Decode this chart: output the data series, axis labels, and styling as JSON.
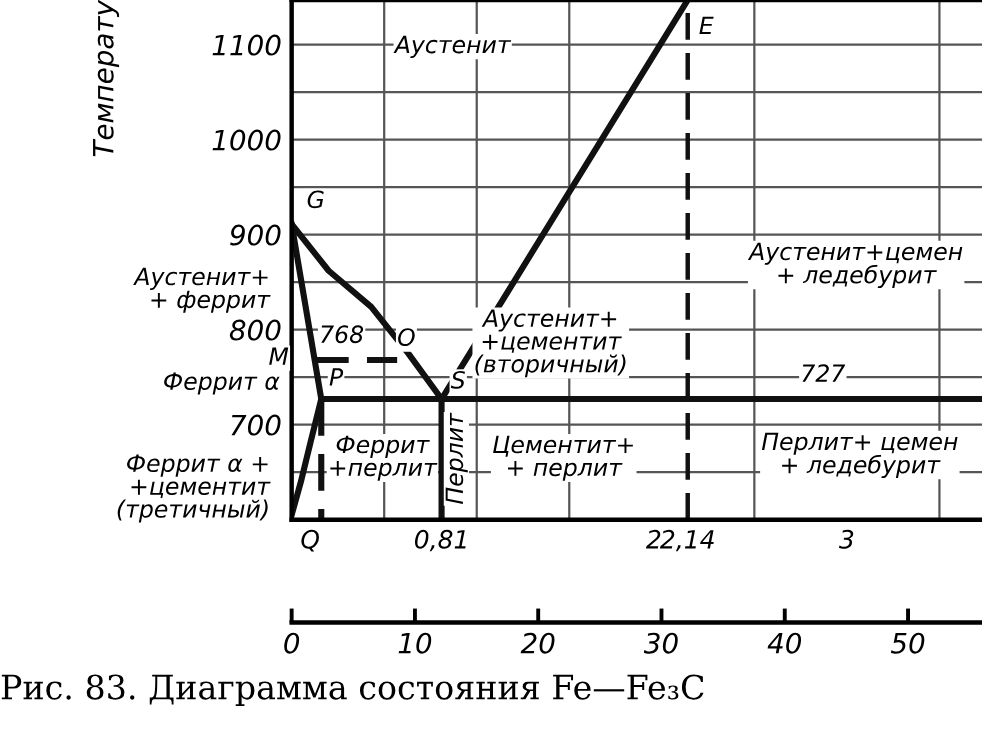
{
  "chart_data": {
    "type": "line",
    "title": "Рис. 83. Диаграмма состояния Fe—Fe₃C",
    "ylabel": "Температу",
    "xlim": [
      0,
      3.73
    ],
    "ylim": [
      600,
      1147
    ],
    "xticks": [
      {
        "value": 0.1,
        "label": "Q"
      },
      {
        "value": 0.5,
        "label": null
      },
      {
        "value": 0.81,
        "label": "0,81"
      },
      {
        "value": 1,
        "label": null
      },
      {
        "value": 1.5,
        "label": null
      },
      {
        "value": 2,
        "label": "2"
      },
      {
        "value": 2.14,
        "label": "2,14"
      },
      {
        "value": 2.5,
        "label": null
      },
      {
        "value": 3,
        "label": "3"
      },
      {
        "value": 3.5,
        "label": null
      }
    ],
    "yticks": [
      {
        "value": 650,
        "label": null
      },
      700,
      {
        "value": 750,
        "label": null
      },
      800,
      {
        "value": 850,
        "label": null
      },
      900,
      {
        "value": 950,
        "label": null
      },
      1000,
      {
        "value": 1050,
        "label": null
      },
      1100
    ],
    "x2lim": [
      0,
      56
    ],
    "x2ticks": [
      0,
      10,
      20,
      30,
      40,
      50
    ],
    "grid": true,
    "marker": "none",
    "series": [
      {
        "color": "#111111",
        "x": [
          0,
          0.2,
          0.43,
          0.63,
          0.81
        ],
        "values": [
          911,
          862,
          824,
          775,
          727
        ]
      },
      {
        "color": "#111111",
        "x": [
          0.81,
          2.14
        ],
        "values": [
          727,
          1147
        ]
      },
      {
        "color": "#111111",
        "x": [
          0,
          0.16,
          0.1,
          0.05,
          0
        ],
        "values": [
          911,
          727,
          680,
          640,
          605
        ]
      },
      {
        "color": "#111111",
        "x": [
          0.16,
          3.73
        ],
        "values": [
          727,
          727
        ]
      },
      {
        "color": "#111111",
        "x": [
          0.81,
          0.81
        ],
        "values": [
          727,
          600
        ]
      },
      {
        "color": "#111111",
        "x": [
          0.16,
          0.16
        ],
        "values": [
          727,
          600
        ],
        "line_style": "dashed"
      },
      {
        "color": "#111111",
        "x": [
          0.11,
          0.57
        ],
        "values": [
          768,
          768
        ],
        "line_style": "dashed"
      }
    ],
    "ref_lines": [
      {
        "axis": "x",
        "value": 2.14,
        "label": null,
        "line_style": "dashed",
        "color": "#111111"
      }
    ],
    "annotations": [
      "Аустенит",
      "E",
      "G",
      "768",
      "M",
      "P",
      "O",
      "S",
      "727",
      "Аустенит+\n+цементит\n(вторичный)",
      "Аустенит+цемен\n+ ледебурит",
      "Феррит\n+перлит",
      "Перлит",
      "Цементит+\n+ перлит",
      "Перлит+ цемен\n+ ледебурит",
      "Аустенит+\n+ феррит",
      "Феррит α",
      "Феррит α +\n+цементит\n(третичный)"
    ]
  }
}
